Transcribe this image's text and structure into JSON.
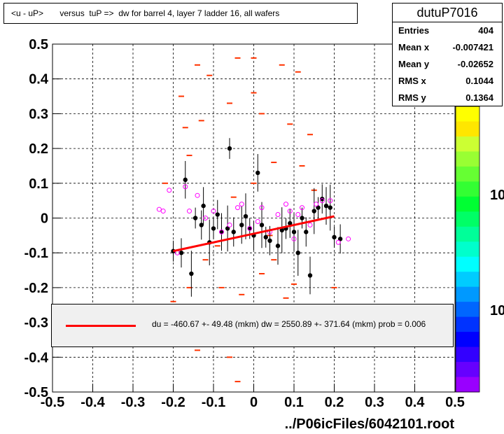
{
  "title": "<u - uP>       versus  tuP =>  dw for barrel 4, layer 7 ladder 16, all wafers",
  "stats": {
    "name": "dutuP7016",
    "rows": [
      {
        "label": "Entries",
        "value": "404"
      },
      {
        "label": "Mean x",
        "value": "-0.007421"
      },
      {
        "label": "Mean y",
        "value": "-0.02652"
      },
      {
        "label": "RMS x",
        "value": "0.1044"
      },
      {
        "label": "RMS y",
        "value": "0.1364"
      }
    ]
  },
  "fit_text": "du = -460.67 +- 49.48 (mkm) dw = 2550.89 +- 371.64 (mkm) prob = 0.006",
  "footer": "../P06icFiles/6042101.root",
  "z_labels": [
    "10",
    "10"
  ],
  "colors": {
    "hist": "#ff3300",
    "fit": "#ff0000",
    "profile": "#000000",
    "marker": "#ff00ff"
  },
  "chart_data": {
    "type": "scatter",
    "title": "<u - uP>       versus  tuP =>  dw for barrel 4, layer 7 ladder 16, all wafers",
    "xlim": [
      -0.5,
      0.5
    ],
    "ylim": [
      -0.5,
      0.5
    ],
    "x_ticks": [
      "-0.5",
      "-0.4",
      "-0.3",
      "-0.2",
      "-0.1",
      "0",
      "0.1",
      "0.2",
      "0.3",
      "0.4",
      "0.5"
    ],
    "y_ticks": [
      "-0.5",
      "-0.4",
      "-0.3",
      "-0.2",
      "-0.1",
      "0",
      "0.1",
      "0.2",
      "0.3",
      "0.4",
      "0.5"
    ],
    "grid": true,
    "fit_line": {
      "x": [
        -0.2,
        0.2
      ],
      "y": [
        -0.095,
        0.005
      ]
    },
    "profile_points": [
      {
        "x": -0.2,
        "y": -0.095
      },
      {
        "x": -0.18,
        "y": -0.1
      },
      {
        "x": -0.17,
        "y": 0.11
      },
      {
        "x": -0.155,
        "y": -0.16
      },
      {
        "x": -0.145,
        "y": 0.0
      },
      {
        "x": -0.13,
        "y": -0.02
      },
      {
        "x": -0.125,
        "y": 0.035
      },
      {
        "x": -0.11,
        "y": -0.07
      },
      {
        "x": -0.1,
        "y": -0.03
      },
      {
        "x": -0.09,
        "y": 0.01
      },
      {
        "x": -0.08,
        "y": -0.04
      },
      {
        "x": -0.065,
        "y": -0.03
      },
      {
        "x": -0.06,
        "y": 0.2
      },
      {
        "x": -0.05,
        "y": -0.04
      },
      {
        "x": -0.03,
        "y": -0.02
      },
      {
        "x": -0.02,
        "y": 0.005
      },
      {
        "x": -0.01,
        "y": -0.03
      },
      {
        "x": 0.0,
        "y": -0.05
      },
      {
        "x": 0.01,
        "y": 0.13
      },
      {
        "x": 0.02,
        "y": -0.02
      },
      {
        "x": 0.03,
        "y": -0.055
      },
      {
        "x": 0.04,
        "y": -0.065
      },
      {
        "x": 0.06,
        "y": -0.08
      },
      {
        "x": 0.07,
        "y": -0.035
      },
      {
        "x": 0.08,
        "y": -0.03
      },
      {
        "x": 0.09,
        "y": -0.015
      },
      {
        "x": 0.1,
        "y": -0.04
      },
      {
        "x": 0.11,
        "y": -0.1
      },
      {
        "x": 0.12,
        "y": 0.0
      },
      {
        "x": 0.13,
        "y": -0.04
      },
      {
        "x": 0.14,
        "y": -0.165
      },
      {
        "x": 0.15,
        "y": 0.02
      },
      {
        "x": 0.16,
        "y": 0.03
      },
      {
        "x": 0.17,
        "y": 0.055
      },
      {
        "x": 0.18,
        "y": 0.035
      },
      {
        "x": 0.19,
        "y": 0.03
      },
      {
        "x": 0.2,
        "y": -0.055
      },
      {
        "x": 0.215,
        "y": -0.06
      }
    ],
    "marker_points": [
      {
        "x": -0.235,
        "y": 0.025
      },
      {
        "x": -0.225,
        "y": 0.02
      },
      {
        "x": -0.21,
        "y": 0.08
      },
      {
        "x": -0.19,
        "y": -0.1
      },
      {
        "x": -0.17,
        "y": 0.09
      },
      {
        "x": -0.16,
        "y": 0.02
      },
      {
        "x": -0.14,
        "y": 0.065
      },
      {
        "x": -0.12,
        "y": 0.0
      },
      {
        "x": -0.1,
        "y": 0.02
      },
      {
        "x": -0.08,
        "y": -0.04
      },
      {
        "x": -0.06,
        "y": -0.02
      },
      {
        "x": -0.04,
        "y": 0.03
      },
      {
        "x": -0.03,
        "y": 0.04
      },
      {
        "x": -0.01,
        "y": -0.03
      },
      {
        "x": 0.01,
        "y": -0.01
      },
      {
        "x": 0.02,
        "y": 0.03
      },
      {
        "x": 0.04,
        "y": -0.04
      },
      {
        "x": 0.06,
        "y": 0.01
      },
      {
        "x": 0.08,
        "y": 0.04
      },
      {
        "x": 0.09,
        "y": 0.02
      },
      {
        "x": 0.1,
        "y": -0.06
      },
      {
        "x": 0.11,
        "y": 0.01
      },
      {
        "x": 0.12,
        "y": 0.03
      },
      {
        "x": 0.14,
        "y": -0.02
      },
      {
        "x": 0.155,
        "y": 0.04
      },
      {
        "x": 0.17,
        "y": 0.05
      },
      {
        "x": 0.19,
        "y": 0.05
      },
      {
        "x": 0.21,
        "y": -0.07
      },
      {
        "x": 0.235,
        "y": -0.06
      }
    ],
    "hist_points": [
      {
        "x": -0.14,
        "y": 0.44
      },
      {
        "x": -0.04,
        "y": 0.46
      },
      {
        "x": 0.0,
        "y": 0.46
      },
      {
        "x": -0.11,
        "y": 0.41
      },
      {
        "x": 0.07,
        "y": 0.44
      },
      {
        "x": 0.11,
        "y": 0.42
      },
      {
        "x": -0.18,
        "y": 0.35
      },
      {
        "x": 0.0,
        "y": 0.36
      },
      {
        "x": -0.06,
        "y": 0.33
      },
      {
        "x": 0.02,
        "y": 0.3
      },
      {
        "x": 0.09,
        "y": 0.27
      },
      {
        "x": 0.14,
        "y": 0.24
      },
      {
        "x": -0.13,
        "y": 0.28
      },
      {
        "x": -0.17,
        "y": 0.26
      },
      {
        "x": 0.12,
        "y": 0.15
      },
      {
        "x": 0.05,
        "y": 0.16
      },
      {
        "x": -0.16,
        "y": 0.18
      },
      {
        "x": -0.22,
        "y": 0.1
      },
      {
        "x": 0.15,
        "y": 0.08
      },
      {
        "x": 0.0,
        "y": 0.1
      },
      {
        "x": -0.05,
        "y": 0.06
      },
      {
        "x": 0.2,
        "y": -0.2
      },
      {
        "x": -0.12,
        "y": -0.12
      },
      {
        "x": 0.05,
        "y": -0.12
      },
      {
        "x": -0.08,
        "y": -0.2
      },
      {
        "x": 0.02,
        "y": -0.16
      },
      {
        "x": 0.1,
        "y": -0.19
      },
      {
        "x": -0.16,
        "y": -0.2
      },
      {
        "x": -0.03,
        "y": -0.22
      },
      {
        "x": 0.08,
        "y": -0.23
      },
      {
        "x": -0.06,
        "y": -0.4
      },
      {
        "x": -0.14,
        "y": -0.38
      },
      {
        "x": -0.04,
        "y": -0.47
      },
      {
        "x": -0.2,
        "y": -0.24
      },
      {
        "x": 0.04,
        "y": -0.05
      },
      {
        "x": -0.09,
        "y": -0.08
      }
    ]
  }
}
